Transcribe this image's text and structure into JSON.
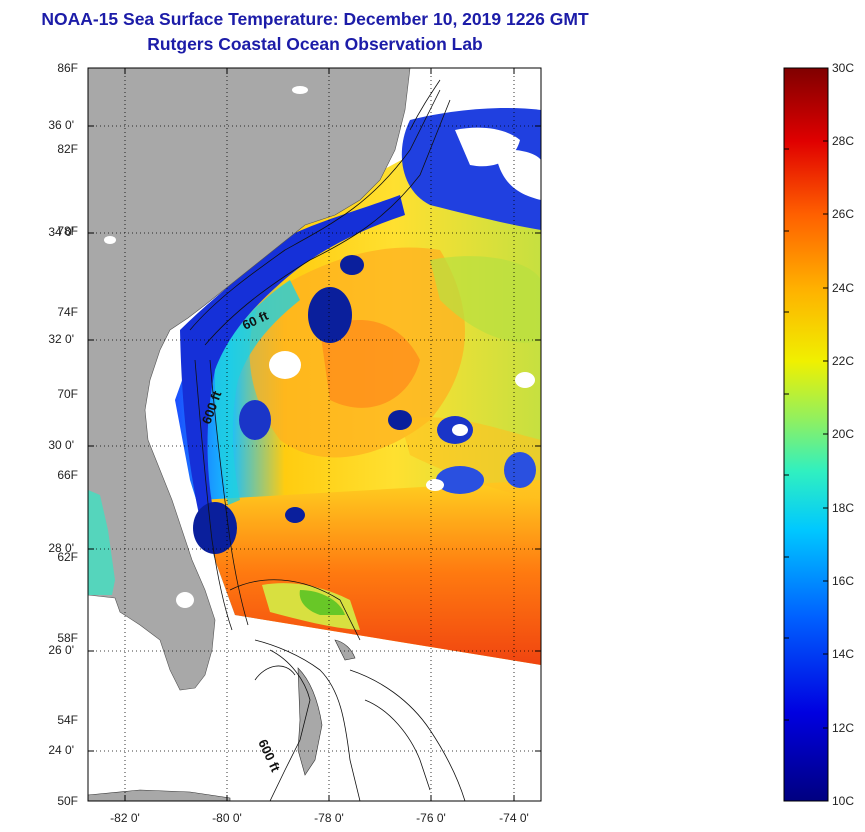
{
  "title": "NOAA-15 Sea Surface Temperature:  December 10, 2019 1226 GMT",
  "subtitle": "Rutgers Coastal Ocean Observation Lab",
  "latitude_labels": [
    "36 0'",
    "34 0'",
    "32 0'",
    "30 0'",
    "28 0'",
    "26 0'",
    "24 0'"
  ],
  "longitude_labels": [
    "-82 0'",
    "-80 0'",
    "-78 0'",
    "-76 0'",
    "-74 0'"
  ],
  "contour_labels": [
    "60 ft",
    "600 ft",
    "600 ft"
  ],
  "colorbar": {
    "fahrenheit_labels": [
      "86F",
      "82F",
      "78F",
      "74F",
      "70F",
      "66F",
      "62F",
      "58F",
      "54F",
      "50F"
    ],
    "celsius_labels": [
      "30C",
      "28C",
      "26C",
      "24C",
      "22C",
      "20C",
      "18C",
      "16C",
      "14C",
      "12C",
      "10C"
    ]
  },
  "colors": {
    "title": "#1c1ca8",
    "land": "#a8a8a8",
    "cloud": "#ffffff",
    "warm": "#e23a12",
    "cold": "#0a1f9c"
  }
}
